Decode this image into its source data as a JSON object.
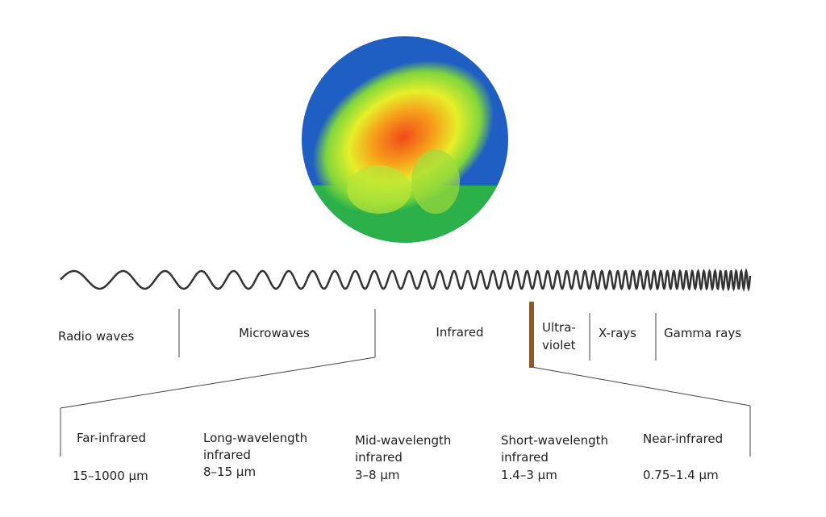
{
  "bands": [
    {
      "lines": [
        "Radio waves"
      ]
    },
    {
      "lines": [
        "Microwaves"
      ]
    },
    {
      "lines": [
        "Infrared"
      ]
    },
    {
      "lines": [
        "Ultra-",
        "violet"
      ]
    },
    {
      "lines": [
        "X-rays"
      ]
    },
    {
      "lines": [
        "Gamma rays"
      ]
    }
  ],
  "subbands": [
    {
      "lines": [
        "Far-infrared"
      ],
      "range": "15–1000 µm"
    },
    {
      "lines": [
        "Long-wavelength",
        "infrared"
      ],
      "range": "8–15 µm"
    },
    {
      "lines": [
        "Mid-wavelength",
        "infrared"
      ],
      "range": "3–8 µm"
    },
    {
      "lines": [
        "Short-wavelength",
        "infrared"
      ],
      "range": "1.4–3 µm"
    },
    {
      "lines": [
        "Near-infrared"
      ],
      "range": "0.75–1.4 µm"
    }
  ]
}
